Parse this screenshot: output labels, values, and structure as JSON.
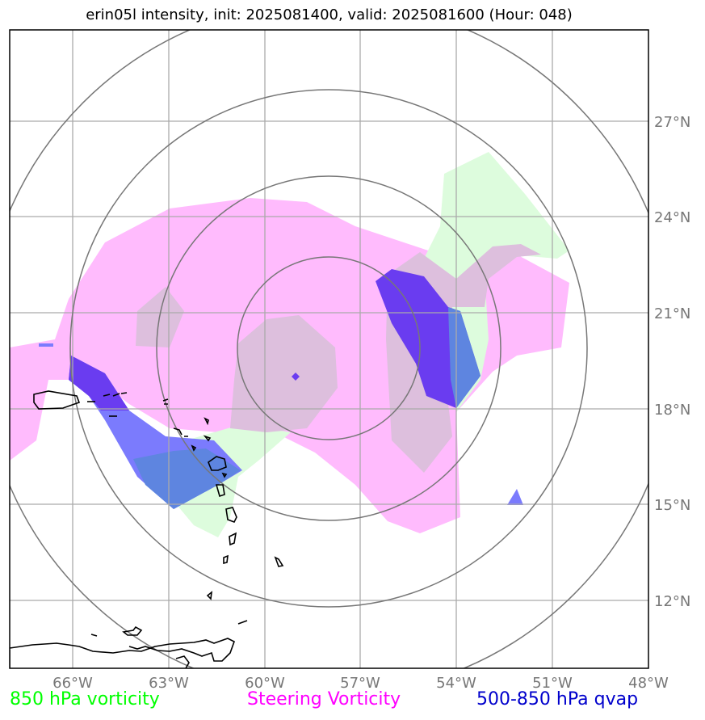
{
  "title": "erin05l intensity, init: 2025081400, valid: 2025081600 (Hour: 048)",
  "map": {
    "lon_range": [
      -68,
      -48
    ],
    "lat_range": [
      10,
      30
    ],
    "lon_ticks": [
      -66,
      -63,
      -60,
      -57,
      -54,
      -51,
      -48
    ],
    "lat_ticks": [
      12,
      15,
      18,
      21,
      24,
      27
    ],
    "lon_labels": [
      "66°W",
      "63°W",
      "60°W",
      "57°W",
      "54°W",
      "51°W",
      "48°W"
    ],
    "lat_labels": [
      "12°N",
      "15°N",
      "18°N",
      "21°N",
      "24°N",
      "27°N"
    ],
    "grid": true,
    "storm_center": {
      "lon": -58.9,
      "lat": 19.0
    },
    "range_rings": 4
  },
  "legend": [
    {
      "label": "850 hPa vorticity",
      "color": "#00ff00"
    },
    {
      "label": "Steering Vorticity",
      "color": "#ff00ff"
    },
    {
      "label": "500-850 hPa qvap",
      "color": "#0000cc"
    }
  ],
  "colors": {
    "vorticity_fill": "#ddfcdd",
    "steering_fill": "#ffbbfd",
    "overlap_fill": "#ddbfdd",
    "qvap_fill": "#7b7bfd",
    "qvap_dark": "#6a3cf0",
    "qvap_overlap": "#5e85e0",
    "coast": "#000000",
    "grid": "#aaaaaa",
    "rings": "#777777"
  }
}
